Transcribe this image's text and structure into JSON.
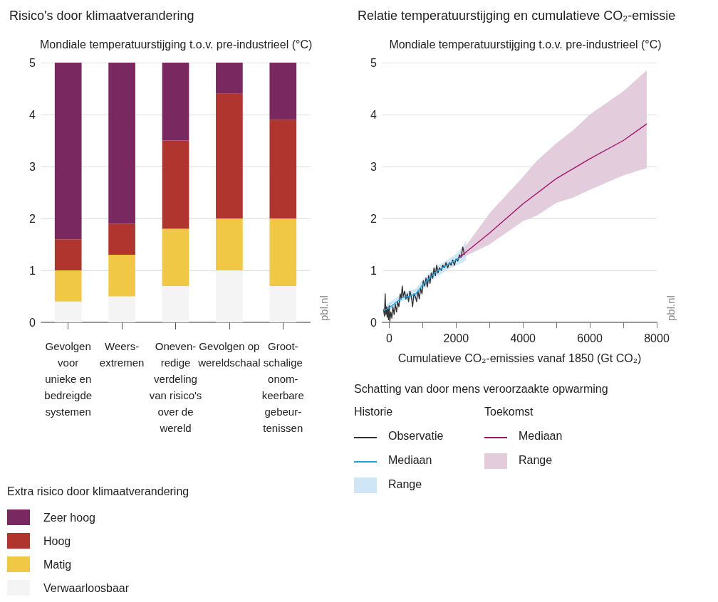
{
  "chart_data": [
    {
      "type": "bar",
      "stacked": true,
      "title": "Risico's door klimaatverandering",
      "ylabel": "Mondiale temperatuurstijging t.o.v. pre-industrieel (°C)",
      "legend_title": "Extra risico door klimaatverandering",
      "annotations": [
        "pbl.nl"
      ],
      "categories": [
        "Gevolgen\nvoor\nunieke en\nbedreigde\nsystemen",
        "Weers-\nextremen",
        "Oneven-\nredige\nverdeling\nvan risico's\nover de\nwereld",
        "Gevolgen op\nwereldschaal",
        "Groot-\nschalige\nonom-\nkeerbare\ngebeur-\ntenissen"
      ],
      "series": [
        {
          "name": "Verwaarloosbaar",
          "color": "#f4f4f4",
          "values": [
            0.4,
            0.5,
            0.7,
            1.0,
            0.7
          ]
        },
        {
          "name": "Matig",
          "color": "#f0c846",
          "values": [
            0.6,
            0.8,
            1.1,
            1.0,
            1.3
          ]
        },
        {
          "name": "Hoog",
          "color": "#b0352f",
          "values": [
            0.6,
            0.6,
            1.7,
            2.4,
            1.9
          ]
        },
        {
          "name": "Zeer hoog",
          "color": "#7a2860",
          "values": [
            3.4,
            3.1,
            1.5,
            0.6,
            1.1
          ]
        }
      ],
      "ylim": [
        0,
        5
      ],
      "yticks": [
        0,
        1,
        2,
        3,
        4,
        5
      ],
      "grid": "y",
      "legend": "bottom"
    },
    {
      "type": "line",
      "title": "Relatie temperatuurstijging en cumulatieve CO₂-emissie",
      "ylabel": "Mondiale temperatuurstijging t.o.v. pre-industrieel (°C)",
      "xlabel": "Cumulatieve CO₂-emissies vanaf 1850 (Gt CO₂)",
      "legend_title": "Schatting van door mens veroorzaakte opwarming",
      "annotations": [
        "pbl.nl",
        "Historie",
        "Toekomst"
      ],
      "series": [
        {
          "name": "Observatie",
          "color": "#333333",
          "x": [
            -170,
            -140,
            -120,
            -100,
            -80,
            -60,
            -40,
            -20,
            0,
            20,
            50,
            80,
            110,
            150,
            180,
            220,
            250,
            290,
            330,
            360,
            390,
            420,
            460,
            500,
            540,
            580,
            620,
            660,
            700,
            740,
            780,
            820,
            860,
            900,
            940,
            980,
            1020,
            1060,
            1100,
            1140,
            1180,
            1220,
            1260,
            1300,
            1340,
            1380,
            1420,
            1460,
            1500,
            1560,
            1600,
            1650,
            1700,
            1750,
            1800,
            1850,
            1900,
            1950,
            2000,
            2050,
            2100,
            2150,
            2200,
            2250
          ],
          "values": [
            0.25,
            0.12,
            0.55,
            0.15,
            0.3,
            0.1,
            0.28,
            0.05,
            0.32,
            0.02,
            0.2,
            0.08,
            0.3,
            0.15,
            0.35,
            0.2,
            0.4,
            0.3,
            0.55,
            0.45,
            0.7,
            0.5,
            0.6,
            0.45,
            0.55,
            0.4,
            0.6,
            0.5,
            0.3,
            0.55,
            0.5,
            0.4,
            0.6,
            0.45,
            0.65,
            0.55,
            0.8,
            0.7,
            0.85,
            0.68,
            0.9,
            0.75,
            0.95,
            0.85,
            1.05,
            0.9,
            1.1,
            0.95,
            1.05,
            1.0,
            1.1,
            1.05,
            1.15,
            1.05,
            1.15,
            1.1,
            1.2,
            1.1,
            1.22,
            1.18,
            1.3,
            1.25,
            1.45,
            1.3
          ]
        },
        {
          "name": "Mediaan",
          "color": "#1ea0e0",
          "x": [
            -170,
            0,
            200,
            400,
            600,
            800,
            1000,
            1200,
            1400,
            1600,
            1800,
            2000,
            2200
          ],
          "values": [
            0.22,
            0.28,
            0.38,
            0.48,
            0.5,
            0.55,
            0.72,
            0.85,
            0.97,
            1.05,
            1.13,
            1.2,
            1.29
          ]
        },
        {
          "name": "Range",
          "type": "area",
          "color": "#cfe6f7",
          "x": [
            -170,
            400,
            800,
            1000,
            1400,
            1800,
            2000,
            2200,
            2300
          ],
          "values": [
            null,
            null,
            null,
            null,
            null,
            null,
            null,
            null,
            null
          ],
          "lower": [
            0.15,
            0.42,
            0.45,
            0.62,
            0.87,
            1.03,
            1.1,
            1.15,
            1.2
          ],
          "upper": [
            0.3,
            0.56,
            0.65,
            0.82,
            1.07,
            1.23,
            1.32,
            1.45,
            1.58
          ]
        },
        {
          "name": "Mediaan",
          "color": "#a0146e",
          "x": [
            2100,
            3000,
            4000,
            5000,
            6000,
            7000,
            7700
          ],
          "values": [
            1.25,
            1.72,
            2.28,
            2.77,
            3.15,
            3.5,
            3.82
          ]
        },
        {
          "name": "Range",
          "type": "area",
          "color": "#e3ccdb",
          "x": [
            2100,
            3000,
            4000,
            4400,
            5000,
            5500,
            6000,
            7000,
            7700
          ],
          "values": [
            null,
            null,
            null,
            null,
            null,
            null,
            null,
            null,
            null
          ],
          "lower": [
            1.22,
            1.5,
            1.95,
            2.05,
            2.3,
            2.4,
            2.55,
            2.83,
            2.97
          ],
          "upper": [
            1.3,
            2.1,
            2.8,
            3.1,
            3.45,
            3.7,
            4.0,
            4.45,
            4.85
          ]
        }
      ],
      "xlim": [
        -200,
        8000
      ],
      "xticks": [
        0,
        {
          "value": 1000,
          "label": null
        },
        2000,
        {
          "value": 3000,
          "label": null
        },
        4000,
        {
          "value": 5000,
          "label": null
        },
        6000,
        {
          "value": 7000,
          "label": null
        },
        8000
      ],
      "ylim": [
        0,
        5
      ],
      "yticks": [
        0,
        1,
        2,
        3,
        4,
        5
      ],
      "grid": "y",
      "marker": "none",
      "legend": "bottom"
    }
  ]
}
